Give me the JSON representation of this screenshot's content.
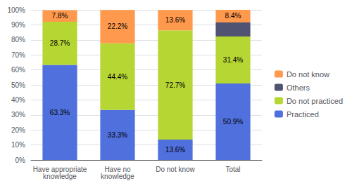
{
  "chart_data": {
    "type": "bar",
    "stacked": true,
    "grid": true,
    "legend": "right",
    "categories": [
      "Have appropriate\nknowledge",
      "Have no\nknowledge",
      "Do not know",
      "Total"
    ],
    "series": [
      {
        "name": "Practiced",
        "values": [
          63.3,
          33.3,
          13.6,
          50.9
        ],
        "data_labels": true,
        "value_labels": [
          "63.3%",
          "33.3%",
          "13.6%",
          "50.9%"
        ]
      },
      {
        "name": "Do not practiced",
        "values": [
          28.7,
          44.4,
          72.7,
          31.4
        ],
        "data_labels": true,
        "value_labels": [
          "28.7%",
          "44.4%",
          "72.7%",
          "31.4%"
        ]
      },
      {
        "name": "Others",
        "values": [
          0.0,
          0.0,
          0.0,
          9.3
        ],
        "data_labels": false
      },
      {
        "name": "Do not know",
        "values": [
          7.8,
          22.2,
          13.6,
          8.4
        ],
        "data_labels": true,
        "value_labels": [
          "7.8%",
          "22.2%",
          "13.6%",
          "8.4%"
        ]
      }
    ],
    "ylim": [
      0,
      100
    ],
    "yticks": [
      {
        "value": 0,
        "label": "0%"
      },
      {
        "value": 10,
        "label": "10%"
      },
      {
        "value": 20,
        "label": "20%"
      },
      {
        "value": 30,
        "label": "30%"
      },
      {
        "value": 40,
        "label": "40%"
      },
      {
        "value": 50,
        "label": "50%"
      },
      {
        "value": 60,
        "label": "60%"
      },
      {
        "value": 70,
        "label": "70%"
      },
      {
        "value": 80,
        "label": "80%"
      },
      {
        "value": 90,
        "label": "90%"
      },
      {
        "value": 100,
        "label": "100%"
      }
    ]
  }
}
